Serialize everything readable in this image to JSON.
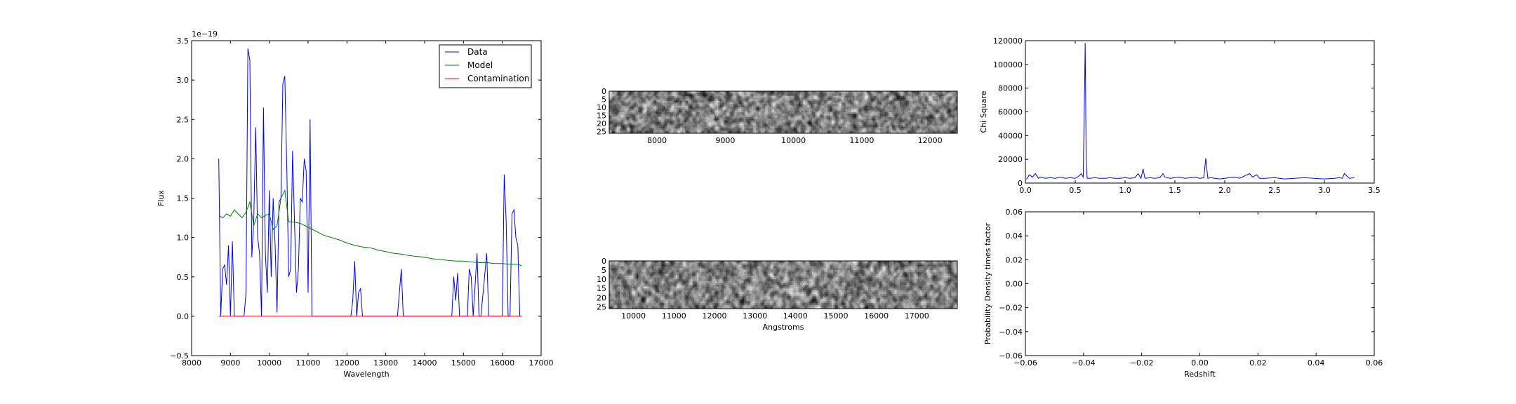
{
  "chart_data": [
    {
      "type": "line",
      "xlabel": "Wavelength",
      "ylabel": "Flux",
      "y_offset_label": "1e−19",
      "xlim": [
        8000,
        17000
      ],
      "ylim": [
        -0.5,
        3.5
      ],
      "xticks": [
        8000,
        9000,
        10000,
        11000,
        12000,
        13000,
        14000,
        15000,
        16000,
        17000
      ],
      "xtick_labels": [
        "8000",
        "9000",
        "10000",
        "11000",
        "12000",
        "13000",
        "14000",
        "15000",
        "16000",
        "17000"
      ],
      "yticks": [
        -0.5,
        0.0,
        0.5,
        1.0,
        1.5,
        2.0,
        2.5,
        3.0,
        3.5
      ],
      "ytick_labels": [
        "−0.5",
        "0.0",
        "0.5",
        "1.0",
        "1.5",
        "2.0",
        "2.5",
        "3.0",
        "3.5"
      ],
      "legend": "top-right",
      "series": [
        {
          "name": "Data",
          "color": "#0000ff",
          "x": [
            8700,
            8750,
            8800,
            8850,
            8900,
            8950,
            9000,
            9050,
            9100,
            9150,
            9200,
            9250,
            9300,
            9350,
            9400,
            9450,
            9500,
            9550,
            9600,
            9650,
            9700,
            9750,
            9800,
            9850,
            9900,
            9950,
            10000,
            10050,
            10100,
            10150,
            10200,
            10250,
            10300,
            10350,
            10400,
            10450,
            10500,
            10550,
            10600,
            10650,
            10700,
            10750,
            10800,
            10850,
            10900,
            10950,
            11000,
            11050,
            11100,
            11150,
            11200,
            11250,
            11300,
            11350,
            11400,
            12100,
            12150,
            12200,
            12250,
            12300,
            12350,
            12400,
            12450,
            12500,
            13300,
            13350,
            13400,
            13450,
            13500,
            14700,
            14750,
            14800,
            14850,
            14900,
            14950,
            15100,
            15150,
            15200,
            15250,
            15350,
            15400,
            15450,
            15600,
            15650,
            15700,
            15750,
            16000,
            16050,
            16100,
            16150,
            16200,
            16250,
            16300,
            16350,
            16400,
            16450,
            16500
          ],
          "y": [
            2.0,
            0.0,
            0.6,
            0.65,
            0.4,
            0.9,
            0.0,
            0.95,
            0.0,
            0.0,
            0.0,
            0.0,
            0.0,
            0.0,
            0.3,
            3.4,
            3.25,
            0.75,
            1.2,
            2.4,
            1.0,
            0.8,
            0.0,
            2.65,
            0.8,
            0.3,
            1.6,
            0.5,
            1.5,
            0.9,
            0.05,
            1.45,
            1.5,
            2.95,
            3.05,
            1.9,
            0.5,
            0.6,
            2.1,
            1.2,
            0.3,
            0.6,
            1.5,
            1.45,
            2.0,
            1.85,
            0.3,
            2.5,
            0.0,
            0.0,
            0.0,
            0.0,
            0.0,
            0.0,
            0.0,
            0.0,
            0.2,
            0.7,
            0.0,
            0.3,
            0.35,
            0.0,
            0.0,
            0.0,
            0.0,
            0.3,
            0.6,
            0.0,
            0.0,
            0.0,
            0.5,
            0.2,
            0.55,
            0.0,
            0.0,
            0.0,
            0.6,
            0.5,
            0.0,
            0.8,
            0.0,
            0.0,
            0.8,
            0.0,
            0.0,
            0.0,
            0.0,
            1.8,
            1.2,
            0.0,
            0.0,
            1.3,
            1.35,
            1.0,
            0.9,
            0.0,
            0.0
          ]
        },
        {
          "name": "Model",
          "color": "#008000",
          "x": [
            8700,
            8800,
            8900,
            9000,
            9100,
            9200,
            9300,
            9400,
            9500,
            9600,
            9700,
            9800,
            9900,
            10000,
            10100,
            10200,
            10300,
            10400,
            10500,
            10600,
            10800,
            11000,
            11200,
            11400,
            11600,
            11800,
            12000,
            12200,
            12400,
            12600,
            12800,
            13000,
            13200,
            13400,
            13600,
            13800,
            14000,
            14200,
            14400,
            14600,
            14800,
            15000,
            15200,
            15400,
            15600,
            15800,
            16000,
            16200,
            16400,
            16500
          ],
          "y": [
            1.28,
            1.25,
            1.3,
            1.27,
            1.35,
            1.3,
            1.25,
            1.32,
            1.45,
            1.15,
            1.3,
            1.25,
            1.28,
            1.3,
            1.1,
            1.15,
            1.5,
            1.6,
            1.2,
            1.2,
            1.18,
            1.13,
            1.08,
            1.03,
            1.0,
            0.97,
            0.93,
            0.9,
            0.88,
            0.87,
            0.84,
            0.82,
            0.8,
            0.79,
            0.77,
            0.76,
            0.75,
            0.73,
            0.72,
            0.71,
            0.7,
            0.7,
            0.69,
            0.68,
            0.68,
            0.67,
            0.67,
            0.66,
            0.66,
            0.64
          ]
        },
        {
          "name": "Contamination",
          "color": "#ff0000",
          "x": [
            8700,
            16500
          ],
          "y": [
            0.0,
            0.0
          ]
        }
      ]
    },
    {
      "type": "heatmap",
      "xlim": [
        7300,
        12400
      ],
      "ylim": [
        26,
        0
      ],
      "xticks": [
        8000,
        9000,
        10000,
        11000,
        12000
      ],
      "xtick_labels": [
        "8000",
        "9000",
        "10000",
        "11000",
        "12000"
      ],
      "yticks": [
        0,
        5,
        10,
        15,
        20,
        25
      ],
      "ytick_labels": [
        "0",
        "5",
        "10",
        "15",
        "20",
        "25"
      ],
      "colormap": "gray",
      "description_seed": 17
    },
    {
      "type": "heatmap",
      "xlabel": "Angstroms",
      "xlim": [
        9400,
        18000
      ],
      "ylim": [
        26,
        0
      ],
      "xticks": [
        10000,
        11000,
        12000,
        13000,
        14000,
        15000,
        16000,
        17000
      ],
      "xtick_labels": [
        "10000",
        "11000",
        "12000",
        "13000",
        "14000",
        "15000",
        "16000",
        "17000"
      ],
      "yticks": [
        0,
        5,
        10,
        15,
        20,
        25
      ],
      "ytick_labels": [
        "0",
        "5",
        "10",
        "15",
        "20",
        "25"
      ],
      "colormap": "gray",
      "description_seed": 91
    },
    {
      "type": "line",
      "ylabel": "Chi Square",
      "xlim": [
        0.0,
        3.5
      ],
      "ylim": [
        0,
        120000
      ],
      "xticks": [
        0.0,
        0.5,
        1.0,
        1.5,
        2.0,
        2.5,
        3.0,
        3.5
      ],
      "xtick_labels": [
        "0.0",
        "0.5",
        "1.0",
        "1.5",
        "2.0",
        "2.5",
        "3.0",
        "3.5"
      ],
      "yticks": [
        0,
        20000,
        40000,
        60000,
        80000,
        100000,
        120000
      ],
      "ytick_labels": [
        "0",
        "20000",
        "40000",
        "60000",
        "80000",
        "100000",
        "120000"
      ],
      "series": [
        {
          "color": "#0000ff",
          "x": [
            0.01,
            0.04,
            0.07,
            0.1,
            0.13,
            0.16,
            0.2,
            0.25,
            0.3,
            0.35,
            0.4,
            0.45,
            0.5,
            0.54,
            0.56,
            0.58,
            0.59,
            0.6,
            0.61,
            0.62,
            0.65,
            0.7,
            0.75,
            0.8,
            0.85,
            0.9,
            0.95,
            1.0,
            1.05,
            1.1,
            1.13,
            1.16,
            1.18,
            1.2,
            1.25,
            1.3,
            1.35,
            1.38,
            1.4,
            1.45,
            1.5,
            1.55,
            1.6,
            1.65,
            1.7,
            1.75,
            1.79,
            1.81,
            1.83,
            1.86,
            1.9,
            1.95,
            2.0,
            2.05,
            2.1,
            2.15,
            2.2,
            2.25,
            2.28,
            2.32,
            2.35,
            2.4,
            2.5,
            2.6,
            2.7,
            2.8,
            2.9,
            3.0,
            3.1,
            3.15,
            3.18,
            3.2,
            3.25,
            3.3
          ],
          "y": [
            3000,
            7000,
            5000,
            8000,
            4000,
            5000,
            4000,
            4500,
            4000,
            5000,
            4000,
            4500,
            4000,
            6000,
            8000,
            5000,
            60000,
            118000,
            20000,
            4000,
            4000,
            4500,
            4000,
            4000,
            4500,
            4000,
            4000,
            4500,
            4000,
            4500,
            8000,
            4000,
            12000,
            4000,
            4500,
            4000,
            4500,
            8000,
            5000,
            4000,
            4500,
            5000,
            4000,
            4500,
            5000,
            4000,
            4500,
            21000,
            4000,
            4500,
            4000,
            3500,
            4000,
            4500,
            5000,
            4000,
            6000,
            8000,
            5000,
            7000,
            4000,
            4000,
            4500,
            3500,
            4000,
            4500,
            4000,
            3500,
            4000,
            4500,
            4000,
            8000,
            4000,
            4500
          ]
        }
      ]
    },
    {
      "type": "line",
      "xlabel": "Redshift",
      "ylabel": "Probability Density times factor",
      "xlim": [
        -0.06,
        0.06
      ],
      "ylim": [
        -0.06,
        0.06
      ],
      "xticks": [
        -0.06,
        -0.04,
        -0.02,
        0.0,
        0.02,
        0.04,
        0.06
      ],
      "xtick_labels": [
        "−0.06",
        "−0.04",
        "−0.02",
        "0.00",
        "0.02",
        "0.04",
        "0.06"
      ],
      "yticks": [
        -0.06,
        -0.04,
        -0.02,
        0.0,
        0.02,
        0.04,
        0.06
      ],
      "ytick_labels": [
        "−0.06",
        "−0.04",
        "−0.02",
        "0.00",
        "0.02",
        "0.04",
        "0.06"
      ],
      "series": []
    }
  ]
}
